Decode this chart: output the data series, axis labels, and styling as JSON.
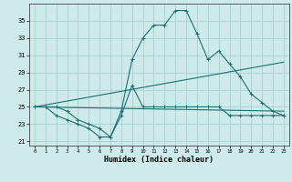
{
  "xlabel": "Humidex (Indice chaleur)",
  "background_color": "#ceeaea",
  "grid_color": "#aacfcf",
  "line_color": "#1a7070",
  "xlim": [
    -0.5,
    23.5
  ],
  "ylim": [
    20.5,
    37.0
  ],
  "yticks": [
    21,
    23,
    25,
    27,
    29,
    31,
    33,
    35
  ],
  "xticks": [
    0,
    1,
    2,
    3,
    4,
    5,
    6,
    7,
    8,
    9,
    10,
    11,
    12,
    13,
    14,
    15,
    16,
    17,
    18,
    19,
    20,
    21,
    22,
    23
  ],
  "series1_x": [
    0,
    1,
    2,
    3,
    4,
    5,
    6,
    7,
    8,
    9,
    10,
    11,
    12,
    13,
    14,
    15,
    16,
    17,
    18,
    19,
    20,
    21,
    22,
    23
  ],
  "series1_y": [
    25,
    25,
    24,
    23.5,
    23,
    22.5,
    21.5,
    21.5,
    24,
    27.5,
    25,
    25,
    25,
    25,
    25,
    25,
    25,
    25,
    24,
    24,
    24,
    24,
    24,
    24
  ],
  "series2_x": [
    0,
    1,
    2,
    3,
    4,
    5,
    6,
    7,
    8,
    9,
    10,
    11,
    12,
    13,
    14,
    15,
    16,
    17,
    18,
    19,
    20,
    21,
    22,
    23
  ],
  "series2_y": [
    25,
    25,
    25,
    24.5,
    23.5,
    23,
    22.5,
    21.5,
    24.5,
    30.5,
    33,
    34.5,
    34.5,
    36.2,
    36.2,
    33.5,
    30.5,
    31.5,
    30,
    28.5,
    26.5,
    25.5,
    24.5,
    24
  ],
  "series3_x": [
    0,
    23
  ],
  "series3_y": [
    25,
    30.2
  ],
  "series4_x": [
    0,
    23
  ],
  "series4_y": [
    25,
    24.5
  ]
}
